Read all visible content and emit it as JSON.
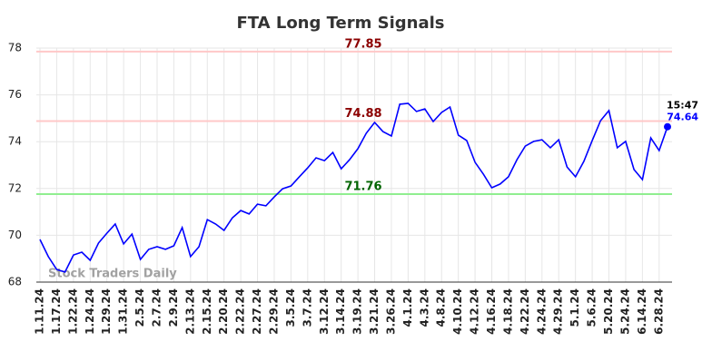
{
  "chart_data": {
    "type": "line",
    "title": "FTA Long Term Signals",
    "color": "#0000ff",
    "categories": [
      "1.11.24",
      null,
      "1.17.24",
      null,
      "1.22.24",
      null,
      "1.24.24",
      null,
      "1.29.24",
      null,
      "1.31.24",
      null,
      "2.5.24",
      null,
      "2.7.24",
      null,
      "2.9.24",
      null,
      "2.13.24",
      null,
      "2.15.24",
      null,
      "2.20.24",
      null,
      "2.22.24",
      null,
      "2.27.24",
      null,
      "2.29.24",
      null,
      "3.5.24",
      null,
      "3.7.24",
      null,
      "3.12.24",
      null,
      "3.14.24",
      null,
      "3.19.24",
      null,
      "3.21.24",
      null,
      "3.26.24",
      null,
      "4.1.24",
      null,
      "4.3.24",
      null,
      "4.8.24",
      null,
      "4.10.24",
      null,
      "4.12.24",
      null,
      "4.16.24",
      null,
      "4.18.24",
      null,
      "4.22.24",
      null,
      "4.24.24",
      null,
      "4.29.24",
      null,
      "5.1.24",
      null,
      "5.6.24",
      null,
      "5.20.24",
      null,
      "5.24.24",
      null,
      "6.14.24",
      null,
      "6.28.24",
      null
    ],
    "values": [
      69.82,
      69.09,
      68.54,
      68.43,
      69.16,
      69.28,
      68.93,
      69.67,
      70.09,
      70.48,
      69.63,
      70.05,
      68.97,
      69.4,
      69.51,
      69.4,
      69.55,
      70.33,
      69.09,
      69.51,
      70.67,
      70.48,
      70.21,
      70.75,
      71.06,
      70.91,
      71.33,
      71.26,
      71.64,
      71.99,
      72.11,
      72.5,
      72.88,
      73.31,
      73.19,
      73.54,
      72.84,
      73.23,
      73.7,
      74.36,
      74.82,
      74.43,
      74.24,
      75.6,
      75.64,
      75.29,
      75.4,
      74.86,
      75.25,
      75.48,
      74.28,
      74.05,
      73.12,
      72.61,
      72.03,
      72.19,
      72.5,
      73.23,
      73.81,
      74.01,
      74.08,
      73.74,
      74.08,
      72.92,
      72.5,
      73.16,
      74.05,
      74.9,
      75.33,
      73.74,
      74.01,
      72.81,
      72.38,
      74.16,
      73.62,
      74.64
    ],
    "ylim": [
      68,
      78
    ],
    "yticks": [
      68,
      70,
      72,
      74,
      76,
      78
    ],
    "grid": true,
    "hlines": [
      {
        "value": 77.85,
        "color": "#ffc8c8",
        "label_color": "#8b0000"
      },
      {
        "value": 74.88,
        "color": "#ffc8c8",
        "label_color": "#8b0000"
      },
      {
        "value": 71.76,
        "color": "#90ee90",
        "label_color": "#006400"
      }
    ],
    "last_time": "15:47",
    "watermark": "Stock Traders Daily"
  }
}
